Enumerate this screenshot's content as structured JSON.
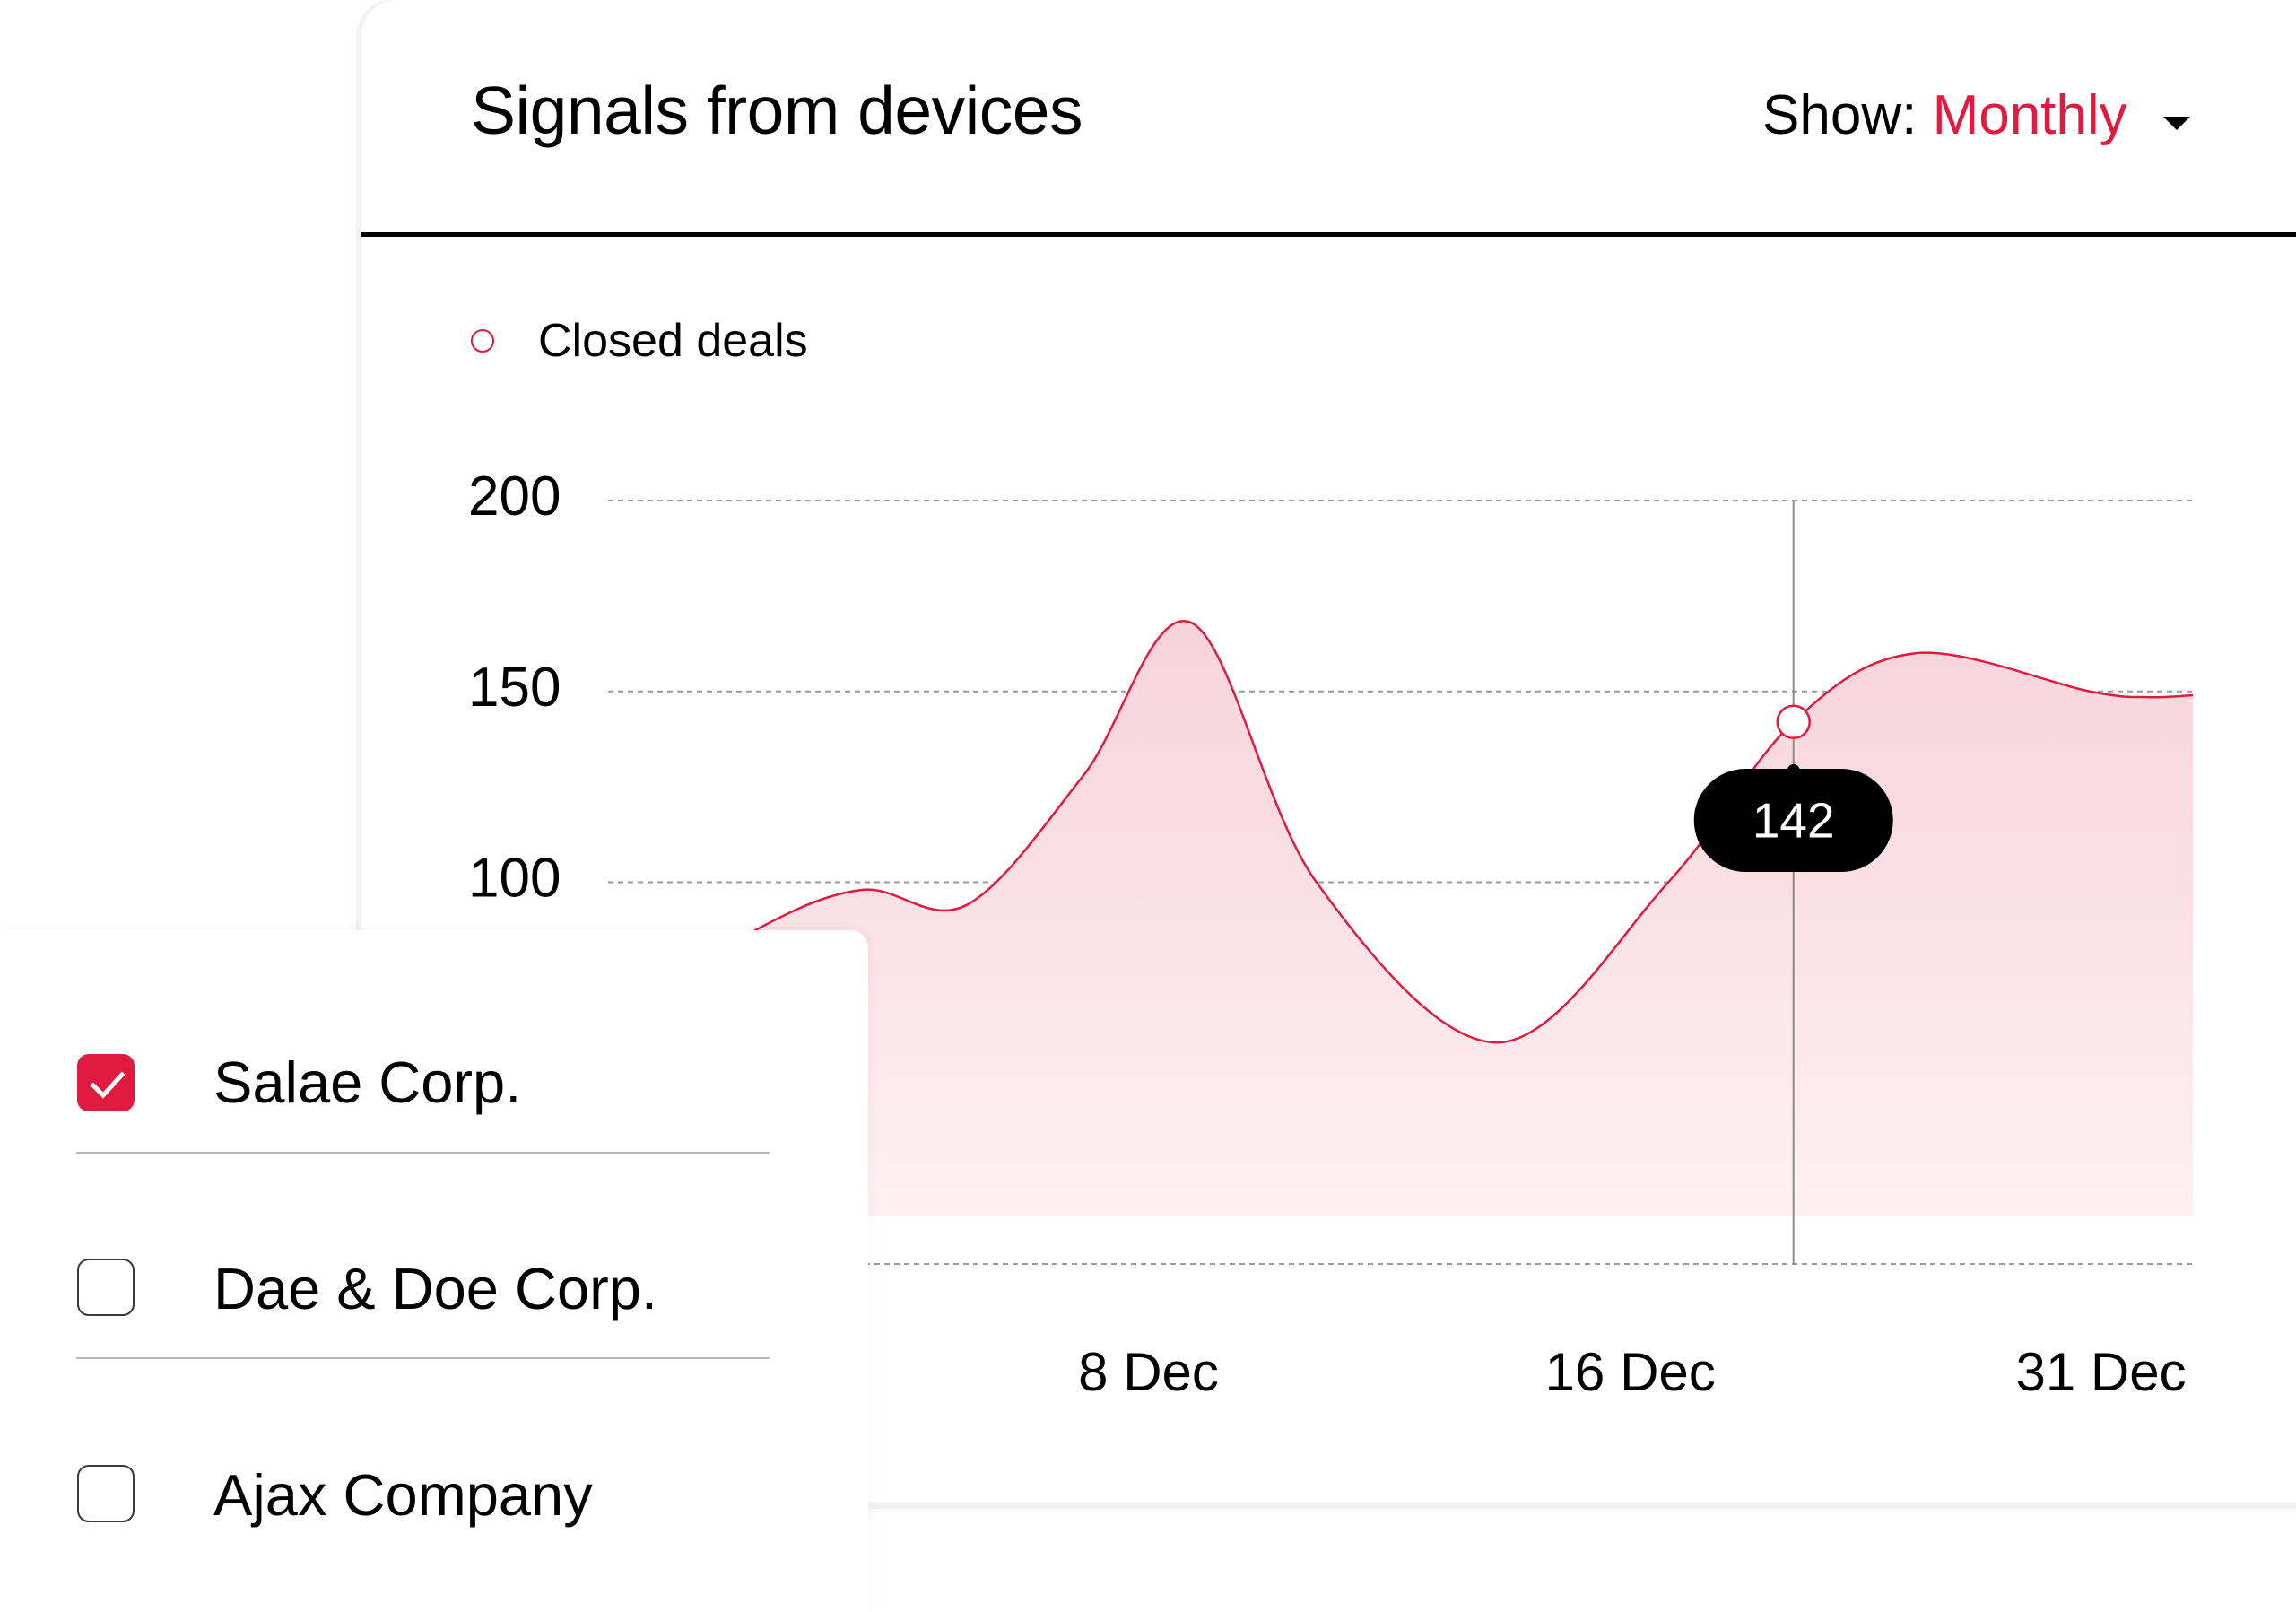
{
  "card": {
    "title": "Signals from devices",
    "show_label": "Show:",
    "show_value": "Monthly",
    "dropdown_icon": "caret-down-icon"
  },
  "colors": {
    "accent": "#E11B3F",
    "area_fill_top": "#F7D3DB",
    "area_fill_bottom": "#FDF0F3",
    "gridline": "#9a9a9a",
    "crosshair": "#8a8a8a",
    "tooltip_bg": "#000000",
    "tooltip_text": "#ffffff"
  },
  "legend": {
    "items": [
      {
        "label": "Closed deals",
        "icon": "hollow-circle-icon"
      }
    ]
  },
  "chart_data": {
    "type": "area",
    "title": "Signals from devices",
    "xlabel": "",
    "ylabel": "",
    "ylim": [
      0,
      200
    ],
    "y_ticks": [
      0,
      50,
      100,
      150,
      200
    ],
    "y_tick_labels": [
      "",
      "",
      "100",
      "150",
      "200"
    ],
    "x_domain": [
      0,
      1
    ],
    "x_ticks": [
      {
        "pos": 0.341,
        "label": "8 Dec"
      },
      {
        "pos": 0.645,
        "label": "16 Dec"
      },
      {
        "pos": 0.942,
        "label": "31 Dec"
      }
    ],
    "grid": true,
    "legend_position": "top-left",
    "series": [
      {
        "name": "Closed deals",
        "x": [
          0.0,
          0.091,
          0.16,
          0.226,
          0.3,
          0.368,
          0.447,
          0.561,
          0.669,
          0.748,
          0.825,
          0.935,
          0.972,
          1.0
        ],
        "values": [
          62,
          87,
          98,
          94,
          128,
          168,
          100,
          58,
          100,
          142,
          160,
          150,
          148.5,
          149
        ]
      }
    ],
    "tooltip": {
      "x": 0.748,
      "value": 142,
      "label": "142"
    }
  },
  "companies": {
    "items": [
      {
        "label": "Salae Corp.",
        "checked": true
      },
      {
        "label": "Dae & Doe Corp.",
        "checked": false
      },
      {
        "label": "Ajax Company",
        "checked": false
      }
    ]
  }
}
